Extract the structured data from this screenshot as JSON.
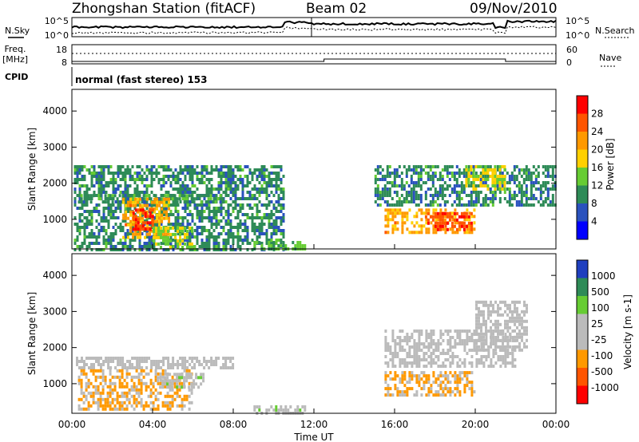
{
  "header": {
    "station": "Zhongshan Station (fitACF)",
    "beam": "Beam 02",
    "date": "09/Nov/2010"
  },
  "noise_panel": {
    "left_label": "N.Sky",
    "right_label": "N.Search",
    "left_ticks": [
      "10^5",
      "10^0"
    ],
    "right_ticks": [
      "10^5",
      "10^0"
    ]
  },
  "freq_panel": {
    "left_label_1": "Freq.",
    "left_label_2": "[MHz]",
    "left_ticks": [
      "18",
      "8"
    ],
    "right_ticks": [
      "60",
      "0"
    ],
    "right_label": "Nave"
  },
  "cpid": {
    "label": "CPID",
    "text": "normal (fast stereo) 153"
  },
  "axes": {
    "ylabel": "Slant Range [km]",
    "xlabel": "Time UT",
    "y_ticks": [
      "4000",
      "3000",
      "2000",
      "1000"
    ],
    "x_ticks": [
      "00:00",
      "04:00",
      "08:00",
      "12:00",
      "16:00",
      "20:00",
      "00:00"
    ]
  },
  "colors": {
    "power": [
      "#0000ff",
      "#2a52be",
      "#2e8b57",
      "#66cc33",
      "#ffd000",
      "#ff9900",
      "#ff5500",
      "#ff0000"
    ],
    "velocity": [
      "#ff0000",
      "#ff5500",
      "#ff9900",
      "#bbbbbb",
      "#bbbbbb",
      "#66cc33",
      "#2e8b57",
      "#1f3fbf"
    ]
  },
  "chart_data": [
    {
      "type": "heatmap",
      "title": "",
      "ylabel": "Slant Range [km]",
      "xlabel": "",
      "x_range": [
        "00:00",
        "24:00"
      ],
      "ylim": [
        180,
        4600
      ],
      "colorbar": {
        "label": "Power [dB]",
        "ticks": [
          "28",
          "24",
          "20",
          "16",
          "12",
          "8",
          "4"
        ],
        "range": [
          0,
          30
        ]
      },
      "regions": [
        {
          "t0": 0.1,
          "t1": 10.5,
          "r0": 200,
          "r1": 2500,
          "value": 9
        },
        {
          "t0": 0.3,
          "t1": 7.5,
          "r0": 1450,
          "r1": 1700,
          "value": 10
        },
        {
          "t0": 2.5,
          "t1": 4.8,
          "r0": 500,
          "r1": 1600,
          "value": 20
        },
        {
          "t0": 3.0,
          "t1": 4.0,
          "r0": 700,
          "r1": 1300,
          "value": 26
        },
        {
          "t0": 4.0,
          "t1": 6.0,
          "r0": 200,
          "r1": 800,
          "value": 14
        },
        {
          "t0": 9.0,
          "t1": 11.5,
          "r0": 200,
          "r1": 400,
          "value": 12
        },
        {
          "t0": 15.0,
          "t1": 24.0,
          "r0": 1400,
          "r1": 2500,
          "value": 9
        },
        {
          "t0": 15.5,
          "t1": 20.0,
          "r0": 600,
          "r1": 1300,
          "value": 20
        },
        {
          "t0": 17.5,
          "t1": 19.8,
          "r0": 700,
          "r1": 1200,
          "value": 25
        },
        {
          "t0": 19.5,
          "t1": 21.5,
          "r0": 1800,
          "r1": 2500,
          "value": 16
        }
      ]
    },
    {
      "type": "heatmap",
      "title": "",
      "ylabel": "Slant Range [km]",
      "xlabel": "Time UT",
      "x_range": [
        "00:00",
        "24:00"
      ],
      "ylim": [
        180,
        4600
      ],
      "colorbar": {
        "label": "Velocity [m s-1]",
        "ticks": [
          "1000",
          "500",
          "100",
          "25",
          "-25",
          "-100",
          "-500",
          "-1000"
        ],
        "range": [
          -1000,
          1000
        ]
      },
      "regions": [
        {
          "t0": 0.2,
          "t1": 8.0,
          "r0": 1450,
          "r1": 1750,
          "value": 0
        },
        {
          "t0": 0.3,
          "t1": 6.0,
          "r0": 300,
          "r1": 1400,
          "value": -300
        },
        {
          "t0": 4.2,
          "t1": 6.5,
          "r0": 900,
          "r1": 1300,
          "value": 100
        },
        {
          "t0": 9.0,
          "t1": 11.5,
          "r0": 200,
          "r1": 400,
          "value": 100
        },
        {
          "t0": 15.5,
          "t1": 20.0,
          "r0": 650,
          "r1": 1350,
          "value": -300
        },
        {
          "t0": 15.5,
          "t1": 22.0,
          "r0": 1500,
          "r1": 2500,
          "value": 0
        },
        {
          "t0": 20.0,
          "t1": 22.5,
          "r0": 1900,
          "r1": 3300,
          "value": 0
        }
      ]
    }
  ]
}
